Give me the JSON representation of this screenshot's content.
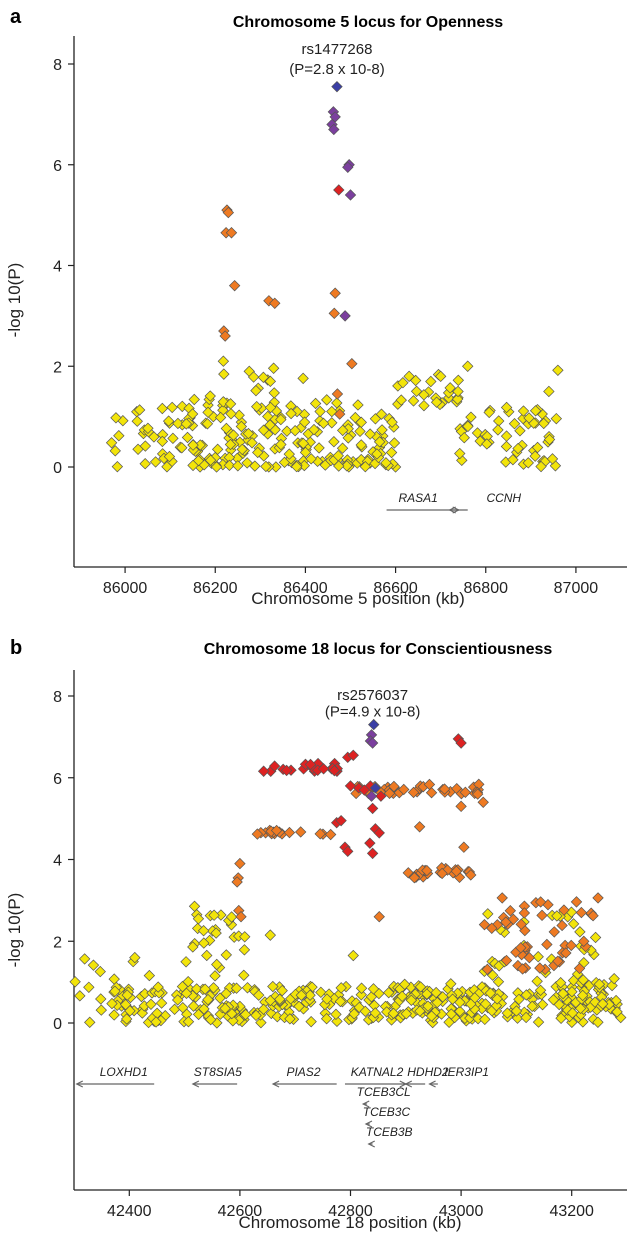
{
  "chart_data": [
    {
      "type": "scatter",
      "panel": "a",
      "title": "Chromosome 5 locus for Openness",
      "xlabel": "Chromosome 5 position (kb)",
      "ylabel": "-log 10(P)",
      "xlim": [
        85900,
        87100
      ],
      "ylim": [
        -1,
        8
      ],
      "xticks": [
        86000,
        86200,
        86400,
        86600,
        86800,
        87000
      ],
      "xtick_labels": [
        "86000",
        "86200",
        "86400",
        "86600",
        "86800",
        "87000"
      ],
      "yticks": [
        0,
        2,
        4,
        6,
        8
      ],
      "ytick_labels": [
        "0",
        "2",
        "4",
        "6",
        "8"
      ],
      "annotations": [
        {
          "text": "rs1477268",
          "x": 86470,
          "y": 8.2
        },
        {
          "text": "(P=2.8 x 10-8)",
          "x": 86470,
          "y": 7.8
        }
      ],
      "genes": [
        {
          "name": "RASA1",
          "start": 86580,
          "end": 86740,
          "direction": "+",
          "label_x": 86650
        },
        {
          "name": "CCNH",
          "start": 86720,
          "end": 86760,
          "direction": "-",
          "label_x": 86840
        }
      ],
      "colors": {
        "blue": "#3b3fa5",
        "purple": "#7b3f9e",
        "red": "#dd2222",
        "orange": "#ee7a22",
        "yellow": "#f2e40a"
      },
      "highlight_points": [
        {
          "x": 86470,
          "y": 7.55,
          "c": "blue"
        },
        {
          "x": 86462,
          "y": 7.05,
          "c": "purple"
        },
        {
          "x": 86466,
          "y": 6.95,
          "c": "purple"
        },
        {
          "x": 86459,
          "y": 6.8,
          "c": "purple"
        },
        {
          "x": 86463,
          "y": 6.7,
          "c": "purple"
        },
        {
          "x": 86497,
          "y": 6.0,
          "c": "purple"
        },
        {
          "x": 86494,
          "y": 5.95,
          "c": "purple"
        },
        {
          "x": 86500,
          "y": 5.4,
          "c": "purple"
        },
        {
          "x": 86474,
          "y": 5.5,
          "c": "red"
        },
        {
          "x": 86226,
          "y": 5.1,
          "c": "orange"
        },
        {
          "x": 86229,
          "y": 5.05,
          "c": "orange"
        },
        {
          "x": 86224,
          "y": 4.65,
          "c": "orange"
        },
        {
          "x": 86236,
          "y": 4.65,
          "c": "orange"
        },
        {
          "x": 86243,
          "y": 3.6,
          "c": "orange"
        },
        {
          "x": 86319,
          "y": 3.3,
          "c": "orange"
        },
        {
          "x": 86332,
          "y": 3.25,
          "c": "orange"
        },
        {
          "x": 86466,
          "y": 3.45,
          "c": "orange"
        },
        {
          "x": 86464,
          "y": 3.05,
          "c": "orange"
        },
        {
          "x": 86488,
          "y": 3.0,
          "c": "purple"
        },
        {
          "x": 86219,
          "y": 2.7,
          "c": "orange"
        },
        {
          "x": 86222,
          "y": 2.6,
          "c": "orange"
        },
        {
          "x": 86218,
          "y": 2.1,
          "c": "yellow"
        },
        {
          "x": 86503,
          "y": 2.05,
          "c": "orange"
        },
        {
          "x": 86471,
          "y": 1.45,
          "c": "orange"
        },
        {
          "x": 86476,
          "y": 1.05,
          "c": "orange"
        }
      ],
      "background_points": {
        "color": "yellow",
        "clusters": [
          {
            "x_from": 85970,
            "x_to": 86600,
            "y_from": 0.0,
            "y_to": 1.35,
            "count": 230
          },
          {
            "x_from": 86600,
            "x_to": 86740,
            "y_from": 1.2,
            "y_to": 1.85,
            "count": 24
          },
          {
            "x_from": 86740,
            "x_to": 86960,
            "y_from": 0.0,
            "y_to": 1.2,
            "count": 55
          },
          {
            "x_from": 86150,
            "x_to": 86420,
            "y_from": 1.2,
            "y_to": 2.0,
            "count": 14
          }
        ],
        "extra": [
          {
            "x": 86760,
            "y": 2.0
          },
          {
            "x": 86960,
            "y": 1.92
          },
          {
            "x": 86940,
            "y": 1.5
          },
          {
            "x": 86700,
            "y": 1.8
          },
          {
            "x": 86630,
            "y": 1.8
          }
        ]
      }
    },
    {
      "type": "scatter",
      "panel": "b",
      "title": "Chromosome 18 locus for Conscientiousness",
      "xlabel": "Chromosome 18 position (kb)",
      "ylabel": "-log 10(P)",
      "xlim": [
        42300,
        43300
      ],
      "ylim": [
        -3.3,
        8.5
      ],
      "xticks": [
        42400,
        42600,
        42800,
        43000,
        43200
      ],
      "xtick_labels": [
        "42400",
        "42600",
        "42800",
        "43000",
        "43200"
      ],
      "yticks": [
        0,
        2,
        4,
        6,
        8
      ],
      "ytick_labels": [
        "0",
        "2",
        "4",
        "6",
        "8"
      ],
      "annotations": [
        {
          "text": "rs2576037",
          "x": 42840,
          "y": 7.9
        },
        {
          "text": "(P=4.9 x 10-8)",
          "x": 42840,
          "y": 7.5
        }
      ],
      "genes": [
        {
          "name": "LOXHD1",
          "start": 42305,
          "end": 42445,
          "direction": "-",
          "label_x": 42390,
          "row": 0
        },
        {
          "name": "ST8SIA5",
          "start": 42515,
          "end": 42595,
          "direction": "-",
          "label_x": 42560,
          "row": 0
        },
        {
          "name": "PIAS2",
          "start": 42660,
          "end": 42775,
          "direction": "-",
          "label_x": 42715,
          "row": 0
        },
        {
          "name": "KATNAL2",
          "start": 42790,
          "end": 42900,
          "direction": "+",
          "label_x": 42848,
          "row": 0
        },
        {
          "name": "HDHD2",
          "start": 42900,
          "end": 42935,
          "direction": "-",
          "label_x": 42940,
          "row": 0
        },
        {
          "name": "IER3IP1",
          "start": 42943,
          "end": 42958,
          "direction": "-",
          "label_x": 43010,
          "row": 0
        },
        {
          "name": "TCEB3CL",
          "start": 42823,
          "end": 42830,
          "direction": "-",
          "label_x": 42860,
          "row": 1
        },
        {
          "name": "TCEB3C",
          "start": 42828,
          "end": 42835,
          "direction": "-",
          "label_x": 42865,
          "row": 2
        },
        {
          "name": "TCEB3B",
          "start": 42833,
          "end": 42840,
          "direction": "-",
          "label_x": 42870,
          "row": 3
        }
      ],
      "colors": {
        "blue": "#3b3fa5",
        "purple": "#7b3f9e",
        "red": "#dd2222",
        "orange": "#ee7a22",
        "yellow": "#f2e40a"
      },
      "bands": [
        {
          "x_from": 42625,
          "x_to": 42780,
          "y_from": 6.15,
          "y_to": 6.35,
          "count": 22,
          "color": "red"
        },
        {
          "x_from": 42622,
          "x_to": 42690,
          "y_from": 4.6,
          "y_to": 4.72,
          "count": 12,
          "color": "orange"
        },
        {
          "x_from": 42690,
          "x_to": 42780,
          "y_from": 4.6,
          "y_to": 4.7,
          "count": 4,
          "color": "orange"
        },
        {
          "x_from": 42800,
          "x_to": 42930,
          "y_from": 5.6,
          "y_to": 5.8,
          "count": 22,
          "color": "orange"
        },
        {
          "x_from": 42930,
          "x_to": 43040,
          "y_from": 5.6,
          "y_to": 5.85,
          "count": 16,
          "color": "orange"
        },
        {
          "x_from": 42900,
          "x_to": 43030,
          "y_from": 3.55,
          "y_to": 3.8,
          "count": 24,
          "color": "orange"
        },
        {
          "x_from": 43040,
          "x_to": 43250,
          "y_from": 1.3,
          "y_to": 3.1,
          "count": 50,
          "color": "orange"
        },
        {
          "x_from": 42320,
          "x_to": 43290,
          "y_from": 0.0,
          "y_to": 0.9,
          "count": 330,
          "color": "yellow"
        },
        {
          "x_from": 42300,
          "x_to": 42440,
          "y_from": 0.6,
          "y_to": 1.6,
          "count": 10,
          "color": "yellow"
        },
        {
          "x_from": 42500,
          "x_to": 42610,
          "y_from": 0.8,
          "y_to": 2.9,
          "count": 30,
          "color": "yellow"
        },
        {
          "x_from": 42620,
          "x_to": 42790,
          "y_from": 0.5,
          "y_to": 0.7,
          "count": 14,
          "color": "yellow"
        },
        {
          "x_from": 43040,
          "x_to": 43250,
          "y_from": 0.8,
          "y_to": 2.8,
          "count": 34,
          "color": "yellow"
        },
        {
          "x_from": 43180,
          "x_to": 43280,
          "y_from": 0.2,
          "y_to": 1.2,
          "count": 30,
          "color": "yellow"
        },
        {
          "x_from": 42880,
          "x_to": 43000,
          "y_from": 0.2,
          "y_to": 1.0,
          "count": 22,
          "color": "yellow"
        }
      ],
      "highlight_points": [
        {
          "x": 42842,
          "y": 7.3,
          "c": "blue"
        },
        {
          "x": 42838,
          "y": 7.05,
          "c": "purple"
        },
        {
          "x": 42836,
          "y": 6.9,
          "c": "purple"
        },
        {
          "x": 42840,
          "y": 6.85,
          "c": "purple"
        },
        {
          "x": 42995,
          "y": 6.95,
          "c": "red"
        },
        {
          "x": 43000,
          "y": 6.85,
          "c": "red"
        },
        {
          "x": 42845,
          "y": 5.75,
          "c": "blue"
        },
        {
          "x": 42838,
          "y": 5.55,
          "c": "purple"
        },
        {
          "x": 42836,
          "y": 5.8,
          "c": "red"
        },
        {
          "x": 42795,
          "y": 6.5,
          "c": "red"
        },
        {
          "x": 42805,
          "y": 6.55,
          "c": "red"
        },
        {
          "x": 42800,
          "y": 5.8,
          "c": "red"
        },
        {
          "x": 42815,
          "y": 5.75,
          "c": "red"
        },
        {
          "x": 42825,
          "y": 5.7,
          "c": "red"
        },
        {
          "x": 42840,
          "y": 5.25,
          "c": "red"
        },
        {
          "x": 42855,
          "y": 5.55,
          "c": "red"
        },
        {
          "x": 42775,
          "y": 4.9,
          "c": "red"
        },
        {
          "x": 42783,
          "y": 4.95,
          "c": "red"
        },
        {
          "x": 42790,
          "y": 4.3,
          "c": "red"
        },
        {
          "x": 42795,
          "y": 4.2,
          "c": "red"
        },
        {
          "x": 42845,
          "y": 4.75,
          "c": "red"
        },
        {
          "x": 42852,
          "y": 4.65,
          "c": "red"
        },
        {
          "x": 42835,
          "y": 4.4,
          "c": "red"
        },
        {
          "x": 42840,
          "y": 4.15,
          "c": "red"
        },
        {
          "x": 42925,
          "y": 4.8,
          "c": "orange"
        },
        {
          "x": 43005,
          "y": 4.3,
          "c": "orange"
        },
        {
          "x": 43000,
          "y": 5.3,
          "c": "orange"
        },
        {
          "x": 43030,
          "y": 5.6,
          "c": "orange"
        },
        {
          "x": 43040,
          "y": 5.4,
          "c": "orange"
        },
        {
          "x": 42852,
          "y": 2.6,
          "c": "orange"
        },
        {
          "x": 42600,
          "y": 3.9,
          "c": "orange"
        },
        {
          "x": 42597,
          "y": 3.55,
          "c": "orange"
        },
        {
          "x": 42595,
          "y": 3.45,
          "c": "orange"
        },
        {
          "x": 42598,
          "y": 2.75,
          "c": "orange"
        },
        {
          "x": 42602,
          "y": 2.6,
          "c": "orange"
        }
      ],
      "extra_yellow": [
        {
          "x": 42655,
          "y": 2.15
        },
        {
          "x": 42805,
          "y": 1.65
        },
        {
          "x": 42820,
          "y": 0.85
        },
        {
          "x": 42522,
          "y": 2.65
        },
        {
          "x": 42525,
          "y": 2.55
        },
        {
          "x": 42410,
          "y": 1.6
        },
        {
          "x": 42655,
          "y": 0.55
        }
      ]
    }
  ]
}
